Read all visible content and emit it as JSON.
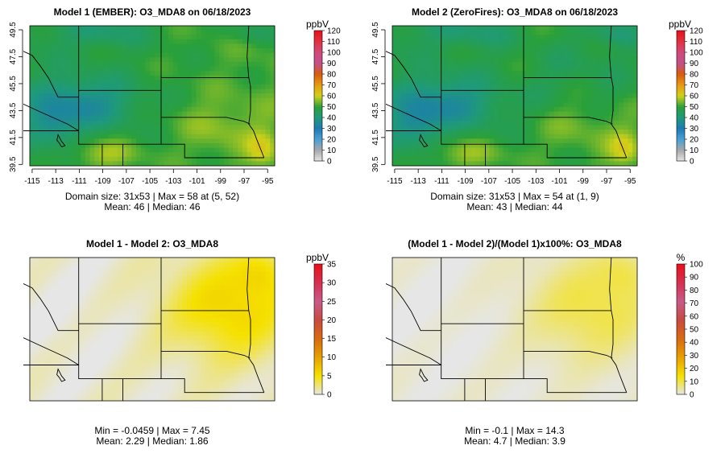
{
  "chart_data": [
    {
      "type": "heatmap",
      "title": "Model 1 (EMBER): O3_MDA8 on 06/18/2023",
      "field": "o3",
      "colorbar": {
        "unit": "ppbV",
        "ticks": [
          "0",
          "10",
          "20",
          "30",
          "40",
          "50",
          "60",
          "70",
          "80",
          "90",
          "100",
          "110",
          "120"
        ],
        "min": 0,
        "max": 120,
        "scale": "o3"
      },
      "x_ticks": [
        "-115",
        "-113",
        "-111",
        "-109",
        "-107",
        "-105",
        "-103",
        "-101",
        "-99",
        "-97",
        "-95"
      ],
      "y_ticks": [
        "39.5",
        "41.5",
        "43.5",
        "45.5",
        "47.5",
        "49.5"
      ],
      "xlim": [
        -115.2,
        -94.4
      ],
      "ylim": [
        39.4,
        49.8
      ],
      "stats": [
        "Domain size: 31x53 | Max = 58 at (5, 52)",
        "Mean: 46 |  Median: 46"
      ]
    },
    {
      "type": "heatmap",
      "title": "Model 2 (ZeroFires): O3_MDA8 on 06/18/2023",
      "field": "o3b",
      "colorbar": {
        "unit": "ppbV",
        "ticks": [
          "0",
          "10",
          "20",
          "30",
          "40",
          "50",
          "60",
          "70",
          "80",
          "90",
          "100",
          "110",
          "120"
        ],
        "min": 0,
        "max": 120,
        "scale": "o3"
      },
      "x_ticks": [
        "-115",
        "-113",
        "-111",
        "-109",
        "-107",
        "-105",
        "-103",
        "-101",
        "-99",
        "-97",
        "-95"
      ],
      "y_ticks": [
        "39.5",
        "41.5",
        "43.5",
        "45.5",
        "47.5",
        "49.5"
      ],
      "xlim": [
        -115.2,
        -94.4
      ],
      "ylim": [
        39.4,
        49.8
      ],
      "stats": [
        "Domain size: 31x53 | Max = 54 at (1, 9)",
        "Mean: 43 |  Median: 44"
      ]
    },
    {
      "type": "heatmap",
      "title": "Model 1 - Model 2: O3_MDA8",
      "field": "diff",
      "colorbar": {
        "unit": "ppbV",
        "ticks": [
          "0",
          "5",
          "10",
          "15",
          "20",
          "25",
          "30",
          "35"
        ],
        "min": 0,
        "max": 35,
        "scale": "diff"
      },
      "x_ticks": [],
      "y_ticks": [],
      "xlim": [
        -115.2,
        -94.4
      ],
      "ylim": [
        39.4,
        49.8
      ],
      "stats": [
        "Min = -0.0459 | Max = 7.45",
        "Mean: 2.29 |  Median: 1.86"
      ]
    },
    {
      "type": "heatmap",
      "title": "(Model 1 - Model 2)/(Model 1)x100%: O3_MDA8",
      "field": "pct",
      "colorbar": {
        "unit": "%",
        "ticks": [
          "0",
          "10",
          "20",
          "30",
          "40",
          "50",
          "60",
          "70",
          "80",
          "90",
          "100"
        ],
        "min": 0,
        "max": 100,
        "scale": "diff"
      },
      "x_ticks": [],
      "y_ticks": [],
      "xlim": [
        -115.2,
        -94.4
      ],
      "ylim": [
        39.4,
        49.8
      ],
      "stats": [
        "Min = -0.1 | Max = 14.3",
        "Mean: 4.7 |  Median: 3.9"
      ]
    }
  ],
  "colors": {
    "o3_scale": [
      "#e6e6e6",
      "#a8a8a8",
      "#4aa0d6",
      "#1c7ab3",
      "#1f9a7a",
      "#2aa03a",
      "#cfd21a",
      "#e89a10",
      "#d95a10",
      "#c2508a",
      "#d04a7a",
      "#e23040",
      "#e8101a"
    ],
    "diff_scale": [
      "#e6e6e6",
      "#f5e100",
      "#e8a000",
      "#d96a10",
      "#c84a40",
      "#c85a8a",
      "#d63050",
      "#e8101a"
    ]
  }
}
